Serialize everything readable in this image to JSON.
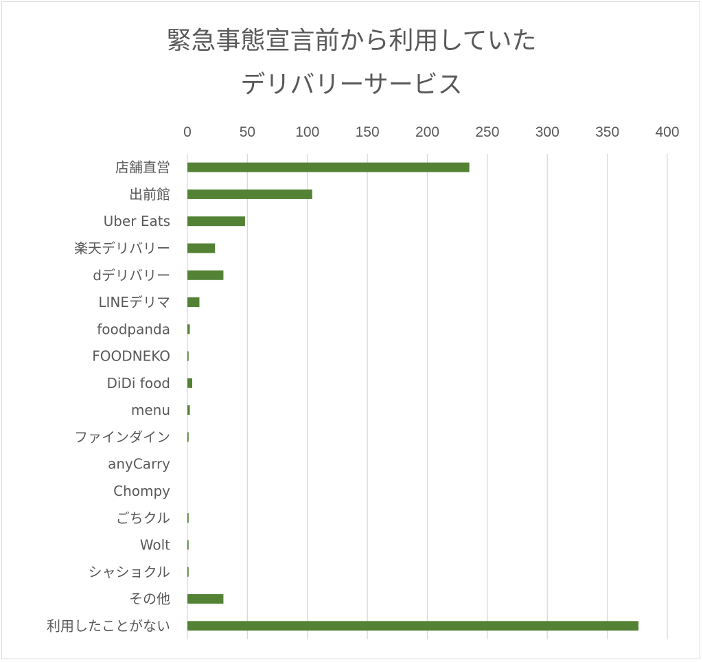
{
  "chart_data": {
    "type": "bar",
    "orientation": "horizontal",
    "title_line1": "緊急事態宣言前から利用していた",
    "title_line2": "デリバリーサービス",
    "categories": [
      "店舗直営",
      "出前館",
      "Uber Eats",
      "楽天デリバリー",
      "dデリバリー",
      "LINEデリマ",
      "foodpanda",
      "FOODNEKO",
      "DiDi food",
      "menu",
      "ファインダイン",
      "anyCarry",
      "Chompy",
      "ごちクル",
      "Wolt",
      "シャショクル",
      "その他",
      "利用したことがない"
    ],
    "values": [
      235,
      104,
      48,
      23,
      30,
      10,
      2,
      1,
      4,
      2,
      1,
      0,
      0,
      1,
      1,
      1,
      30,
      376
    ],
    "xlim": [
      0,
      400
    ],
    "xticks": [
      0,
      50,
      100,
      150,
      200,
      250,
      300,
      350,
      400
    ],
    "xaxis_position": "top",
    "grid": true,
    "bar_color": "#548235"
  }
}
